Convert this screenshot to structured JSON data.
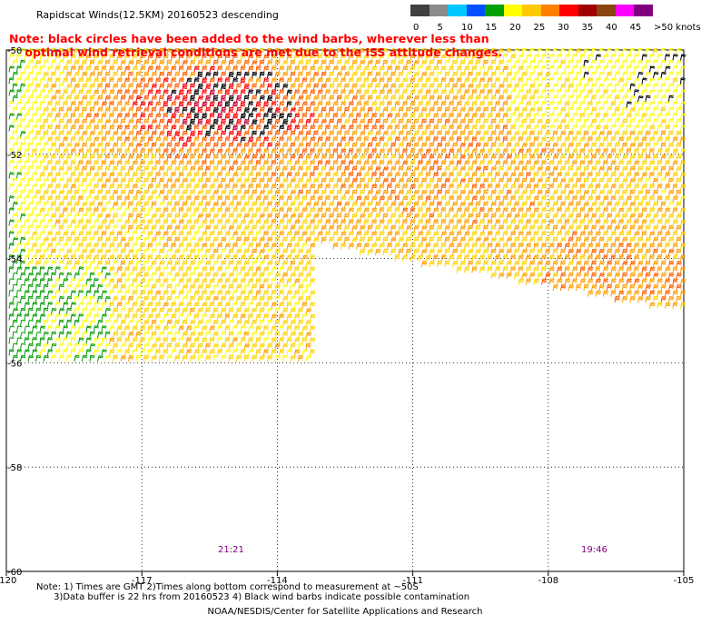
{
  "title": "Rapidscat Winds(12.5KM) 20160523 descending",
  "note_line1": "Note: black circles have been added to the wind barbs, wherever less than",
  "note_line2": "    optimal wind retrieval conditions are met due to the ISS attitude changes.",
  "legend": {
    "labels": [
      "0",
      "5",
      "10",
      "15",
      "20",
      "25",
      "30",
      "35",
      "40",
      "45",
      ">50 knots"
    ],
    "colors": [
      "#404040",
      "#8a8a8a",
      "#00c8ff",
      "#0050ff",
      "#00a000",
      "#ffff00",
      "#ffc800",
      "#ff8000",
      "#ff0000",
      "#a00000",
      "#8b4513",
      "#ff00ff",
      "#800080"
    ]
  },
  "map": {
    "lon_labels": [
      "-120",
      "-117",
      "-114",
      "-111",
      "-108",
      "-105"
    ],
    "lat_labels": [
      "-50",
      "-52",
      "-54",
      "-56",
      "-58",
      "-60"
    ],
    "lon_range": [
      -120,
      -105
    ],
    "lat_range": [
      -50,
      -60
    ],
    "times": [
      "21:21",
      "19:46"
    ]
  },
  "footnote_line1": "Note: 1) Times are GMT 2)Times along bottom correspond to measurement at ~50S",
  "footnote_line2": "      3)Data buffer is 22 hrs from 20160523 4) Black wind barbs indicate possible contamination",
  "credit": "NOAA/NESDIS/Center for Satellite Applications and Research"
}
